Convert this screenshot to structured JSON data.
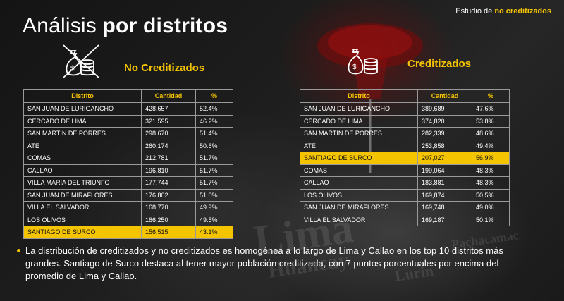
{
  "header": {
    "study_prefix": "Estudio de",
    "study_highlight": "no creditizados"
  },
  "title": {
    "light": "Análisis",
    "bold": "por distritos"
  },
  "background_map": [
    "Lima",
    "Huancay",
    "Lurin",
    "Pachacamac"
  ],
  "no_creditizados": {
    "title": "No Creditizados",
    "icon": "money-bag-coins-crossed-icon",
    "columns": [
      "Distrito",
      "Cantidad",
      "%"
    ],
    "rows": [
      [
        "SAN JUAN DE LURIGANCHO",
        "428,657",
        "52.4%"
      ],
      [
        "CERCADO DE LIMA",
        "321,595",
        "46.2%"
      ],
      [
        "SAN MARTIN DE PORRES",
        "298,670",
        "51.4%"
      ],
      [
        "ATE",
        "260,174",
        "50.6%"
      ],
      [
        "COMAS",
        "212,781",
        "51.7%"
      ],
      [
        "CALLAO",
        "196,810",
        "51.7%"
      ],
      [
        "VILLA MARIA DEL TRIUNFO",
        "177,744",
        "51.7%"
      ],
      [
        "SAN JUAN DE MIRAFLORES",
        "176,802",
        "51.0%"
      ],
      [
        "VILLA EL SALVADOR",
        "168,770",
        "49.9%"
      ],
      [
        "LOS OLIVOS",
        "166,250",
        "49.5%"
      ],
      [
        "SANTIAGO DE SURCO",
        "156,515",
        "43.1%"
      ]
    ],
    "highlight_row": 10
  },
  "creditizados": {
    "title": "Creditizados",
    "icon": "money-bag-coins-icon",
    "columns": [
      "Distrito",
      "Cantidad",
      "%"
    ],
    "rows": [
      [
        "SAN JUAN DE LURIGANCHO",
        "389,689",
        "47.6%"
      ],
      [
        "CERCADO DE LIMA",
        "374,820",
        "53.8%"
      ],
      [
        "SAN MARTIN DE PORRES",
        "282,339",
        "48.6%"
      ],
      [
        "ATE",
        "253,858",
        "49.4%"
      ],
      [
        "SANTIAGO DE SURCO",
        "207,027",
        "56.9%"
      ],
      [
        "COMAS",
        "199,064",
        "48.3%"
      ],
      [
        "CALLAO",
        "183,881",
        "48.3%"
      ],
      [
        "LOS OLIVOS",
        "169,874",
        "50.5%"
      ],
      [
        "SAN JUAN DE MIRAFLORES",
        "169,748",
        "49.0%"
      ],
      [
        "VILLA EL SALVADOR",
        "169,187",
        "50.1%"
      ]
    ],
    "highlight_row": 4
  },
  "note": "La distribución de creditizados y no creditizados es homogénea a lo largo de Lima y Callao en los top 10 distritos más grandes. Santiago de Surco destaca al tener mayor población creditizada, con 7 puntos porcentuales  por encima del promedio de Lima y Callao.",
  "colors": {
    "accent": "#f5c400",
    "background": "#1c1c1c",
    "pin": "#b81414"
  }
}
